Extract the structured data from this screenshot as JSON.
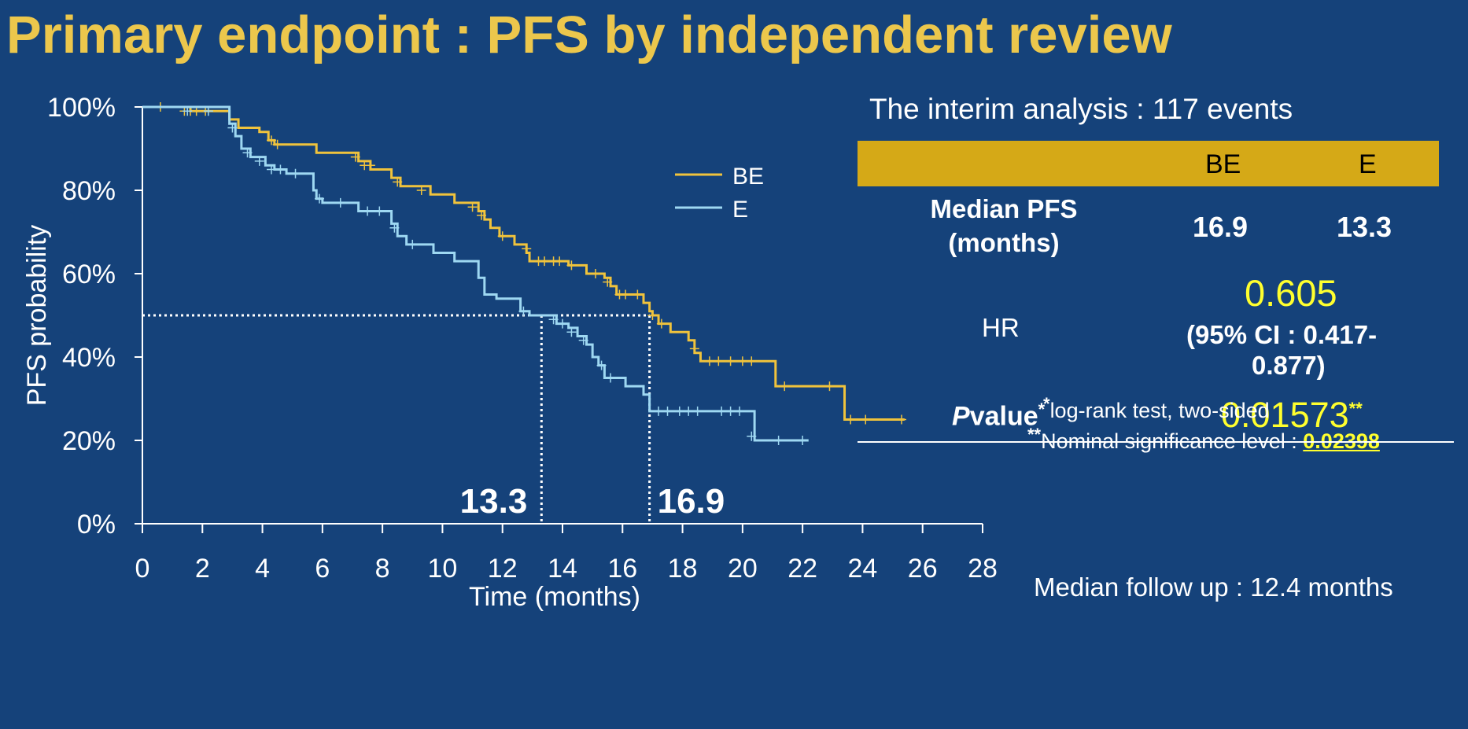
{
  "title": "Primary endpoint  :  PFS by independent review",
  "colors": {
    "background": "#15427a",
    "title": "#ecc74c",
    "be_line": "#f0c33c",
    "e_line": "#9ed8f2",
    "table_header": "#d5a917",
    "highlight": "#ffff2e"
  },
  "summary": {
    "interim": "The interim analysis : 117 events",
    "col_be": "BE",
    "col_e": "E",
    "median_label_1": "Median PFS",
    "median_label_2": "(months)",
    "median_be": "16.9",
    "median_e": "13.3",
    "hr_label": "HR",
    "hr_value": "0.605",
    "ci_line_1": "(95% CI : 0.417-",
    "ci_line_2": "0.877)",
    "p_italic": "P",
    "p_word": "value",
    "p_mark": "*",
    "p_value": "0.01573",
    "p_value_mark": "**",
    "footnote_1_mark": "*",
    "footnote_1": "log-rank test, two-sided",
    "footnote_2_mark": "**",
    "footnote_2": "Nominal significance level : ",
    "footnote_2_value": "0.02398",
    "follow_up": "Median follow up : 12.4 months"
  },
  "chart_data": {
    "type": "line",
    "subtype": "kaplan-meier",
    "xlabel": "Time (months)",
    "ylabel": "PFS probability",
    "xlim": [
      0,
      28
    ],
    "ylim": [
      0,
      100
    ],
    "x_ticks": [
      0,
      2,
      4,
      6,
      8,
      10,
      12,
      14,
      16,
      18,
      20,
      22,
      24,
      26,
      28
    ],
    "y_ticks": [
      0,
      20,
      40,
      60,
      80,
      100
    ],
    "y_tick_labels": [
      "0%",
      "20%",
      "40%",
      "60%",
      "80%",
      "100%"
    ],
    "legend_position": "top-center",
    "median_line_y": 50,
    "median_annotations": [
      {
        "label": "13.3",
        "x": 13.3,
        "series": "E"
      },
      {
        "label": "16.9",
        "x": 16.9,
        "series": "BE"
      }
    ],
    "series": [
      {
        "name": "BE",
        "color": "#f0c33c",
        "steps": [
          [
            0,
            100
          ],
          [
            1.4,
            100
          ],
          [
            1.6,
            99
          ],
          [
            2.7,
            99
          ],
          [
            2.9,
            97
          ],
          [
            3.2,
            95
          ],
          [
            3.9,
            94
          ],
          [
            4.2,
            92
          ],
          [
            4.4,
            91
          ],
          [
            5.6,
            91
          ],
          [
            5.8,
            89
          ],
          [
            7.0,
            89
          ],
          [
            7.2,
            87
          ],
          [
            7.6,
            85
          ],
          [
            8.3,
            83
          ],
          [
            8.6,
            81
          ],
          [
            9.3,
            81
          ],
          [
            9.6,
            79
          ],
          [
            10.2,
            79
          ],
          [
            10.4,
            77
          ],
          [
            11.0,
            77
          ],
          [
            11.2,
            75
          ],
          [
            11.4,
            73
          ],
          [
            11.6,
            71
          ],
          [
            11.9,
            69
          ],
          [
            12.1,
            69
          ],
          [
            12.4,
            67
          ],
          [
            12.6,
            67
          ],
          [
            12.8,
            65
          ],
          [
            12.9,
            63
          ],
          [
            14.0,
            63
          ],
          [
            14.2,
            62
          ],
          [
            14.6,
            62
          ],
          [
            14.8,
            60
          ],
          [
            15.4,
            59
          ],
          [
            15.6,
            57
          ],
          [
            15.8,
            55
          ],
          [
            16.5,
            55
          ],
          [
            16.7,
            53
          ],
          [
            16.9,
            51
          ],
          [
            17.0,
            50
          ],
          [
            17.2,
            48
          ],
          [
            17.6,
            46
          ],
          [
            18.1,
            46
          ],
          [
            18.2,
            44
          ],
          [
            18.4,
            41
          ],
          [
            18.6,
            39
          ],
          [
            21.0,
            39
          ],
          [
            21.1,
            33
          ],
          [
            23.3,
            33
          ],
          [
            23.4,
            25
          ],
          [
            25.4,
            25
          ]
        ],
        "censors": [
          [
            0.6,
            100
          ],
          [
            1.4,
            99
          ],
          [
            1.6,
            99
          ],
          [
            1.8,
            99
          ],
          [
            2.1,
            99
          ],
          [
            4.3,
            92
          ],
          [
            4.5,
            91
          ],
          [
            7.1,
            88
          ],
          [
            7.4,
            86
          ],
          [
            7.6,
            86
          ],
          [
            8.5,
            82
          ],
          [
            9.3,
            80
          ],
          [
            11.0,
            76
          ],
          [
            11.3,
            74
          ],
          [
            12.0,
            69
          ],
          [
            12.8,
            66
          ],
          [
            13.2,
            63
          ],
          [
            13.4,
            63
          ],
          [
            13.7,
            63
          ],
          [
            13.9,
            63
          ],
          [
            14.3,
            62
          ],
          [
            15.1,
            60
          ],
          [
            15.5,
            58
          ],
          [
            15.9,
            55
          ],
          [
            16.1,
            55
          ],
          [
            16.5,
            55
          ],
          [
            17.0,
            50
          ],
          [
            17.3,
            48
          ],
          [
            18.4,
            42
          ],
          [
            18.9,
            39
          ],
          [
            19.2,
            39
          ],
          [
            19.6,
            39
          ],
          [
            20.0,
            39
          ],
          [
            20.3,
            39
          ],
          [
            21.4,
            33
          ],
          [
            22.9,
            33
          ],
          [
            23.6,
            25
          ],
          [
            24.1,
            25
          ],
          [
            25.3,
            25
          ]
        ]
      },
      {
        "name": "E",
        "color": "#9ed8f2",
        "steps": [
          [
            0,
            100
          ],
          [
            2.8,
            100
          ],
          [
            2.9,
            96
          ],
          [
            3.1,
            93
          ],
          [
            3.3,
            90
          ],
          [
            3.6,
            88
          ],
          [
            4.1,
            86
          ],
          [
            4.4,
            85
          ],
          [
            4.8,
            84
          ],
          [
            5.6,
            84
          ],
          [
            5.7,
            80
          ],
          [
            5.8,
            78
          ],
          [
            6.0,
            77
          ],
          [
            7.0,
            77
          ],
          [
            7.2,
            75
          ],
          [
            8.1,
            75
          ],
          [
            8.3,
            72
          ],
          [
            8.5,
            69
          ],
          [
            8.8,
            67
          ],
          [
            9.5,
            67
          ],
          [
            9.7,
            65
          ],
          [
            10.2,
            65
          ],
          [
            10.4,
            63
          ],
          [
            11.1,
            63
          ],
          [
            11.2,
            59
          ],
          [
            11.4,
            55
          ],
          [
            11.8,
            54
          ],
          [
            12.3,
            54
          ],
          [
            12.6,
            51
          ],
          [
            12.9,
            50
          ],
          [
            13.6,
            50
          ],
          [
            13.8,
            48
          ],
          [
            14.2,
            47
          ],
          [
            14.5,
            45
          ],
          [
            14.8,
            43
          ],
          [
            15.0,
            40
          ],
          [
            15.2,
            38
          ],
          [
            15.4,
            35
          ],
          [
            15.7,
            35
          ],
          [
            16.1,
            33
          ],
          [
            16.7,
            31
          ],
          [
            16.9,
            27
          ],
          [
            20.2,
            27
          ],
          [
            20.4,
            20
          ],
          [
            22.2,
            20
          ]
        ],
        "censors": [
          [
            1.5,
            99
          ],
          [
            2.2,
            99
          ],
          [
            3.0,
            95
          ],
          [
            3.5,
            89
          ],
          [
            3.9,
            87
          ],
          [
            4.3,
            85
          ],
          [
            4.6,
            85
          ],
          [
            5.1,
            84
          ],
          [
            5.9,
            78
          ],
          [
            6.6,
            77
          ],
          [
            7.5,
            75
          ],
          [
            7.9,
            75
          ],
          [
            8.4,
            71
          ],
          [
            9.0,
            67
          ],
          [
            12.7,
            51
          ],
          [
            13.7,
            49
          ],
          [
            14.0,
            48
          ],
          [
            14.3,
            46
          ],
          [
            14.7,
            44
          ],
          [
            15.3,
            38
          ],
          [
            15.6,
            35
          ],
          [
            17.2,
            27
          ],
          [
            17.5,
            27
          ],
          [
            17.9,
            27
          ],
          [
            18.2,
            27
          ],
          [
            18.5,
            27
          ],
          [
            19.3,
            27
          ],
          [
            19.6,
            27
          ],
          [
            19.9,
            27
          ],
          [
            20.3,
            21
          ],
          [
            21.2,
            20
          ],
          [
            22.0,
            20
          ]
        ]
      }
    ]
  }
}
